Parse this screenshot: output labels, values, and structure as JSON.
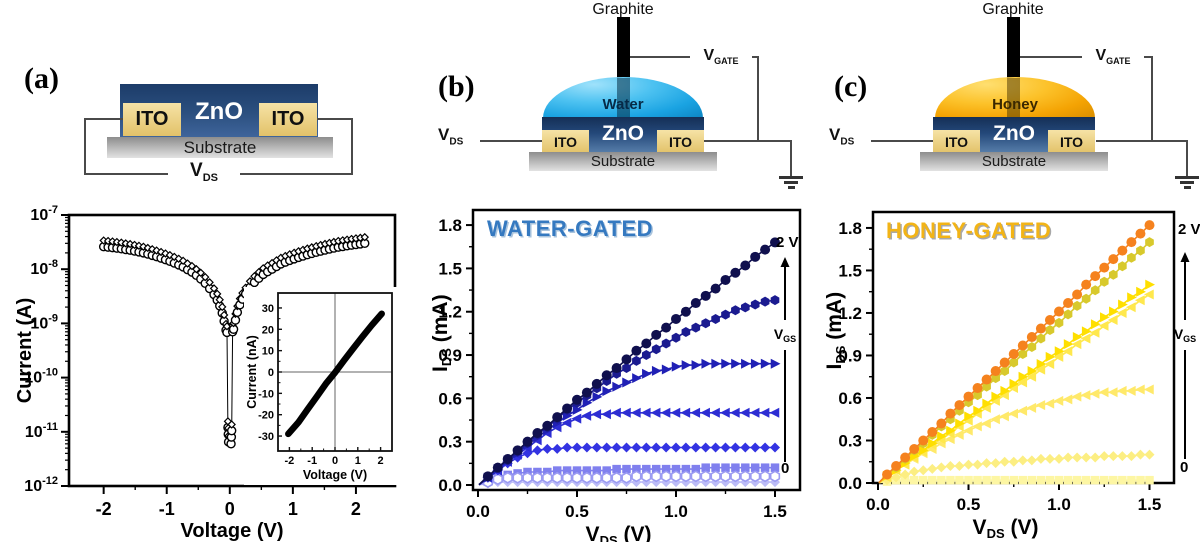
{
  "panels": {
    "a": {
      "label": "(a)",
      "zno": "ZnO",
      "ito_left": "ITO",
      "ito_right": "ITO",
      "substrate": "Substrate",
      "vds": {
        "v": "V",
        "sub": "DS"
      }
    },
    "b": {
      "label": "(b)",
      "graphite": "Graphite",
      "liquid": "Water",
      "zno": "ZnO",
      "ito_left": "ITO",
      "ito_right": "ITO",
      "substrate": "Substrate",
      "vds": {
        "v": "V",
        "sub": "DS"
      },
      "vgate": {
        "v": "V",
        "sub": "GATE"
      }
    },
    "c": {
      "label": "(c)",
      "graphite": "Graphite",
      "liquid": "Honey",
      "zno": "ZnO",
      "ito_left": "ITO",
      "ito_right": "ITO",
      "substrate": "Substrate",
      "vds": {
        "v": "V",
        "sub": "DS"
      },
      "vgate": {
        "v": "V",
        "sub": "GATE"
      }
    }
  },
  "chart_data": [
    {
      "id": "iv-semilog",
      "type": "scatter",
      "xlabel": "Voltage (V)",
      "ylabel": "Current (A)",
      "x_ticks": [
        -2,
        -1,
        0,
        1,
        2
      ],
      "y_tick_exponents": [
        -7,
        -8,
        -9,
        -10,
        -11,
        -12
      ],
      "xlim": [
        -2.55,
        2.62
      ],
      "ylim_log": [
        -12,
        -7
      ],
      "marker": "open-circle",
      "color": "#000000",
      "points": [
        [
          -2.0,
          2.6e-08
        ],
        [
          -1.93,
          2.55e-08
        ],
        [
          -1.86,
          2.5e-08
        ],
        [
          -1.79,
          2.44e-08
        ],
        [
          -1.72,
          2.38e-08
        ],
        [
          -1.65,
          2.3e-08
        ],
        [
          -1.58,
          2.24e-08
        ],
        [
          -1.51,
          2.16e-08
        ],
        [
          -1.44,
          2.08e-08
        ],
        [
          -1.37,
          2e-08
        ],
        [
          -1.3,
          1.9e-08
        ],
        [
          -1.23,
          1.8e-08
        ],
        [
          -1.16,
          1.7e-08
        ],
        [
          -1.09,
          1.6e-08
        ],
        [
          -1.02,
          1.5e-08
        ],
        [
          -0.95,
          1.4e-08
        ],
        [
          -0.88,
          1.3e-08
        ],
        [
          -0.81,
          1.2e-08
        ],
        [
          -0.74,
          1.1e-08
        ],
        [
          -0.67,
          9.8e-09
        ],
        [
          -0.6,
          8.8e-09
        ],
        [
          -0.53,
          7.7e-09
        ],
        [
          -0.46,
          6.6e-09
        ],
        [
          -0.39,
          5.5e-09
        ],
        [
          -0.32,
          4.4e-09
        ],
        [
          -0.25,
          3.4e-09
        ],
        [
          -0.2,
          2.7e-09
        ],
        [
          -0.16,
          2.1e-09
        ],
        [
          -0.12,
          1.55e-09
        ],
        [
          -0.09,
          1.1e-09
        ],
        [
          -0.06,
          7.5e-10
        ],
        [
          -0.045,
          6.8e-10
        ],
        [
          -0.03,
          1.2e-11
        ],
        [
          -0.025,
          9e-12
        ],
        [
          -0.02,
          6.5e-12
        ],
        [
          0.02,
          6e-12
        ],
        [
          0.025,
          8e-12
        ],
        [
          0.03,
          1.05e-11
        ],
        [
          0.045,
          7e-10
        ],
        [
          0.06,
          7.8e-10
        ],
        [
          0.09,
          1.15e-09
        ],
        [
          0.12,
          1.6e-09
        ],
        [
          0.16,
          2.2e-09
        ],
        [
          0.2,
          2.8e-09
        ],
        [
          0.25,
          3.5e-09
        ],
        [
          0.32,
          4.6e-09
        ],
        [
          0.39,
          5.7e-09
        ],
        [
          0.46,
          6.8e-09
        ],
        [
          0.53,
          8e-09
        ],
        [
          0.6,
          9e-09
        ],
        [
          0.67,
          1e-08
        ],
        [
          0.74,
          1.12e-08
        ],
        [
          0.81,
          1.25e-08
        ],
        [
          0.88,
          1.35e-08
        ],
        [
          0.95,
          1.45e-08
        ],
        [
          1.02,
          1.55e-08
        ],
        [
          1.09,
          1.65e-08
        ],
        [
          1.16,
          1.75e-08
        ],
        [
          1.23,
          1.85e-08
        ],
        [
          1.3,
          1.95e-08
        ],
        [
          1.37,
          2.05e-08
        ],
        [
          1.44,
          2.15e-08
        ],
        [
          1.51,
          2.25e-08
        ],
        [
          1.58,
          2.35e-08
        ],
        [
          1.65,
          2.45e-08
        ],
        [
          1.72,
          2.55e-08
        ],
        [
          1.79,
          2.62e-08
        ],
        [
          1.86,
          2.7e-08
        ],
        [
          1.93,
          2.78e-08
        ],
        [
          2.0,
          2.85e-08
        ],
        [
          2.07,
          2.92e-08
        ],
        [
          2.14,
          3e-08
        ]
      ],
      "dual_sweep_factor": 1.3
    },
    {
      "id": "iv-inset",
      "type": "line",
      "xlabel": "Voltage (V)",
      "ylabel": "Current (nA)",
      "x_ticks": [
        -2,
        -1,
        0,
        1,
        2
      ],
      "y_ticks": [
        -30,
        -20,
        -10,
        0,
        10,
        20,
        30
      ],
      "xlim": [
        -2.5,
        2.5
      ],
      "ylim": [
        -37,
        37
      ],
      "color": "#000000",
      "points": [
        [
          -2.05,
          -29
        ],
        [
          -1.6,
          -23.5
        ],
        [
          -1.2,
          -17.5
        ],
        [
          -0.8,
          -11.5
        ],
        [
          -0.4,
          -5.5
        ],
        [
          0,
          -0.3
        ],
        [
          0.4,
          5.5
        ],
        [
          0.8,
          11
        ],
        [
          1.2,
          16.5
        ],
        [
          1.6,
          21.8
        ],
        [
          2.05,
          27.3
        ]
      ]
    },
    {
      "id": "water-output",
      "type": "scatter",
      "title": "WATER-GATED",
      "title_color": "#3579c0",
      "title_shadow": "#aac4dd",
      "xlabel_parts": {
        "v": "V",
        "sub": "DS",
        "unit": " (V)"
      },
      "ylabel_parts": {
        "v": "I",
        "sub": "DS",
        "unit": " (mA)"
      },
      "x_ticks": [
        {
          "v": 0,
          "l": "0.0"
        },
        {
          "v": 0.5,
          "l": "0.5"
        },
        {
          "v": 1.0,
          "l": "1.0"
        },
        {
          "v": 1.5,
          "l": "1.5"
        }
      ],
      "y_ticks": [
        {
          "v": 0,
          "l": "0.0"
        },
        {
          "v": 0.3,
          "l": "0.3"
        },
        {
          "v": 0.6,
          "l": "0.6"
        },
        {
          "v": 0.9,
          "l": "0.9"
        },
        {
          "v": 1.2,
          "l": "1.2"
        },
        {
          "v": 1.5,
          "l": "1.5"
        },
        {
          "v": 1.8,
          "l": "1.8"
        }
      ],
      "x_start": 0.05,
      "x_step": 0.05,
      "annotations": {
        "gate_top": "2 V",
        "gate_bottom": "0",
        "arrow_label": {
          "v": "V",
          "sub": "GS"
        }
      },
      "series": [
        {
          "name": "vgs-max",
          "marker": "circle",
          "color": "#10104e",
          "values": [
            0.06,
            0.12,
            0.18,
            0.24,
            0.3,
            0.36,
            0.41,
            0.47,
            0.53,
            0.59,
            0.64,
            0.7,
            0.76,
            0.81,
            0.87,
            0.93,
            0.98,
            1.04,
            1.09,
            1.15,
            1.2,
            1.26,
            1.31,
            1.36,
            1.42,
            1.47,
            1.52,
            1.58,
            1.63,
            1.68
          ]
        },
        {
          "name": "vgs-2",
          "marker": "hexagon",
          "color": "#1b1b90",
          "values": [
            0.06,
            0.12,
            0.17,
            0.23,
            0.29,
            0.35,
            0.4,
            0.46,
            0.52,
            0.57,
            0.62,
            0.67,
            0.72,
            0.77,
            0.81,
            0.86,
            0.9,
            0.94,
            0.98,
            1.02,
            1.06,
            1.09,
            1.12,
            1.15,
            1.18,
            1.21,
            1.23,
            1.25,
            1.27,
            1.28
          ]
        },
        {
          "name": "vgs-3",
          "marker": "tri-right",
          "color": "#2020b5",
          "values": [
            0.05,
            0.11,
            0.17,
            0.22,
            0.28,
            0.33,
            0.38,
            0.43,
            0.48,
            0.52,
            0.57,
            0.61,
            0.65,
            0.68,
            0.71,
            0.74,
            0.77,
            0.79,
            0.8,
            0.82,
            0.83,
            0.83,
            0.84,
            0.84,
            0.84,
            0.84,
            0.84,
            0.84,
            0.84,
            0.84
          ]
        },
        {
          "name": "vgs-4",
          "marker": "tri-left",
          "color": "#2d2dd3",
          "values": [
            0.05,
            0.1,
            0.16,
            0.21,
            0.26,
            0.31,
            0.36,
            0.4,
            0.43,
            0.46,
            0.48,
            0.49,
            0.49,
            0.5,
            0.5,
            0.5,
            0.5,
            0.5,
            0.5,
            0.5,
            0.5,
            0.5,
            0.5,
            0.5,
            0.5,
            0.5,
            0.5,
            0.5,
            0.5,
            0.5
          ]
        },
        {
          "name": "vgs-5",
          "marker": "diamond",
          "color": "#3333e2",
          "values": [
            0.05,
            0.1,
            0.15,
            0.19,
            0.22,
            0.24,
            0.25,
            0.25,
            0.26,
            0.26,
            0.26,
            0.26,
            0.26,
            0.26,
            0.26,
            0.26,
            0.26,
            0.26,
            0.26,
            0.26,
            0.26,
            0.26,
            0.26,
            0.26,
            0.26,
            0.26,
            0.26,
            0.26,
            0.26,
            0.26
          ]
        },
        {
          "name": "vgs-6",
          "marker": "hexagon",
          "color": "#9b9bf2",
          "fill": "#ffffff",
          "values": [
            0.02,
            0.04,
            0.05,
            0.05,
            0.05,
            0.05,
            0.05,
            0.05,
            0.05,
            0.05,
            0.05,
            0.05,
            0.05,
            0.05,
            0.05,
            0.06,
            0.06,
            0.06,
            0.06,
            0.06,
            0.06,
            0.06,
            0.06,
            0.06,
            0.06,
            0.06,
            0.06,
            0.06,
            0.06,
            0.06
          ]
        },
        {
          "name": "vgs-7",
          "marker": "square",
          "color": "#8080ee",
          "values": [
            0.03,
            0.06,
            0.07,
            0.08,
            0.09,
            0.09,
            0.09,
            0.1,
            0.1,
            0.1,
            0.1,
            0.1,
            0.1,
            0.11,
            0.11,
            0.11,
            0.11,
            0.11,
            0.11,
            0.11,
            0.11,
            0.11,
            0.12,
            0.12,
            0.12,
            0.12,
            0.12,
            0.12,
            0.12,
            0.12
          ]
        },
        {
          "name": "vgs-0",
          "marker": "diamond",
          "color": "#bcbcf7",
          "values": [
            0.01,
            0.02,
            0.02,
            0.02,
            0.02,
            0.02,
            0.02,
            0.02,
            0.02,
            0.02,
            0.02,
            0.02,
            0.02,
            0.02,
            0.02,
            0.02,
            0.02,
            0.02,
            0.02,
            0.02,
            0.02,
            0.02,
            0.02,
            0.02,
            0.02,
            0.02,
            0.02,
            0.02,
            0.02,
            0.02
          ]
        }
      ]
    },
    {
      "id": "honey-output",
      "type": "scatter",
      "title": "HONEY-GATED",
      "title_color": "#f2b417",
      "title_shadow": "#a8a8a8",
      "xlabel_parts": {
        "v": "V",
        "sub": "DS",
        "unit": " (V)"
      },
      "ylabel_parts": {
        "v": "I",
        "sub": "DS",
        "unit": " (mA)"
      },
      "x_ticks": [
        {
          "v": 0,
          "l": "0.0"
        },
        {
          "v": 0.5,
          "l": "0.5"
        },
        {
          "v": 1.0,
          "l": "1.0"
        },
        {
          "v": 1.5,
          "l": "1.5"
        }
      ],
      "y_ticks": [
        {
          "v": 0,
          "l": "0.0"
        },
        {
          "v": 0.3,
          "l": "0.3"
        },
        {
          "v": 0.6,
          "l": "0.6"
        },
        {
          "v": 0.9,
          "l": "0.9"
        },
        {
          "v": 1.2,
          "l": "1.2"
        },
        {
          "v": 1.5,
          "l": "1.5"
        },
        {
          "v": 1.8,
          "l": "1.8"
        }
      ],
      "x_start": 0.05,
      "x_step": 0.05,
      "annotations": {
        "gate_top": "2 V",
        "gate_bottom": "0",
        "arrow_label": {
          "v": "V",
          "sub": "GS"
        }
      },
      "series": [
        {
          "name": "vgs-max",
          "marker": "circle",
          "color": "#f5821e",
          "values": [
            0.06,
            0.12,
            0.18,
            0.24,
            0.3,
            0.36,
            0.42,
            0.49,
            0.55,
            0.61,
            0.67,
            0.73,
            0.79,
            0.85,
            0.91,
            0.97,
            1.03,
            1.09,
            1.15,
            1.21,
            1.27,
            1.33,
            1.4,
            1.46,
            1.52,
            1.58,
            1.64,
            1.7,
            1.76,
            1.82
          ]
        },
        {
          "name": "vgs-2",
          "marker": "hexagon",
          "color": "#d8c92c",
          "values": [
            0.06,
            0.11,
            0.17,
            0.23,
            0.28,
            0.34,
            0.4,
            0.45,
            0.51,
            0.57,
            0.62,
            0.68,
            0.74,
            0.79,
            0.85,
            0.91,
            0.96,
            1.02,
            1.08,
            1.13,
            1.19,
            1.25,
            1.3,
            1.36,
            1.42,
            1.47,
            1.53,
            1.59,
            1.64,
            1.7
          ]
        },
        {
          "name": "vgs-3",
          "marker": "tri-right",
          "color": "#ffdf00",
          "values": [
            0.05,
            0.09,
            0.14,
            0.19,
            0.23,
            0.28,
            0.33,
            0.37,
            0.42,
            0.47,
            0.51,
            0.56,
            0.61,
            0.65,
            0.7,
            0.75,
            0.79,
            0.84,
            0.89,
            0.93,
            0.98,
            1.03,
            1.07,
            1.12,
            1.17,
            1.21,
            1.26,
            1.31,
            1.35,
            1.4
          ]
        },
        {
          "name": "vgs-4",
          "marker": "tri-left",
          "color": "#ffe84d",
          "values": [
            0.04,
            0.09,
            0.13,
            0.18,
            0.22,
            0.27,
            0.31,
            0.35,
            0.4,
            0.44,
            0.49,
            0.53,
            0.58,
            0.62,
            0.67,
            0.71,
            0.75,
            0.8,
            0.84,
            0.89,
            0.93,
            0.98,
            1.02,
            1.06,
            1.11,
            1.15,
            1.2,
            1.24,
            1.29,
            1.33
          ]
        },
        {
          "name": "vgs-5",
          "marker": "tri-left",
          "color": "#ffe96a",
          "values": [
            0.04,
            0.09,
            0.13,
            0.17,
            0.21,
            0.24,
            0.28,
            0.31,
            0.34,
            0.37,
            0.4,
            0.42,
            0.45,
            0.47,
            0.49,
            0.51,
            0.53,
            0.55,
            0.56,
            0.58,
            0.59,
            0.61,
            0.62,
            0.63,
            0.64,
            0.64,
            0.65,
            0.65,
            0.66,
            0.66
          ]
        },
        {
          "name": "vgs-6",
          "marker": "diamond",
          "color": "#fcee82",
          "values": [
            0.02,
            0.04,
            0.06,
            0.08,
            0.09,
            0.1,
            0.11,
            0.12,
            0.12,
            0.13,
            0.13,
            0.14,
            0.14,
            0.15,
            0.15,
            0.16,
            0.16,
            0.17,
            0.17,
            0.17,
            0.18,
            0.18,
            0.18,
            0.18,
            0.19,
            0.19,
            0.19,
            0.19,
            0.2,
            0.2
          ]
        },
        {
          "name": "vgs-0",
          "marker": "square",
          "color": "#fdf6a3",
          "values": [
            0.01,
            0.02,
            0.02,
            0.02,
            0.02,
            0.02,
            0.02,
            0.02,
            0.02,
            0.02,
            0.02,
            0.02,
            0.02,
            0.02,
            0.02,
            0.02,
            0.02,
            0.02,
            0.02,
            0.02,
            0.02,
            0.02,
            0.02,
            0.02,
            0.02,
            0.02,
            0.02,
            0.02,
            0.02,
            0.02
          ]
        }
      ]
    }
  ]
}
